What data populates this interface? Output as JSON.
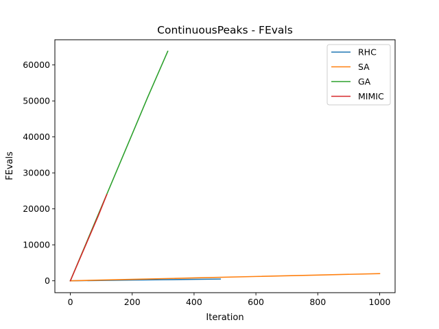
{
  "chart_data": {
    "type": "line",
    "title": "ContinuousPeaks - FEvals",
    "xlabel": "Iteration",
    "ylabel": "FEvals",
    "xlim": [
      -50,
      1050
    ],
    "ylim": [
      -3300,
      67000
    ],
    "xticks": [
      0,
      200,
      400,
      600,
      800,
      1000
    ],
    "yticks": [
      0,
      10000,
      20000,
      30000,
      40000,
      50000,
      60000
    ],
    "grid": false,
    "legend_position": "top-right",
    "series": [
      {
        "name": "RHC",
        "color": "#1f77b4",
        "x": [
          0,
          100,
          200,
          300,
          400,
          485
        ],
        "y": [
          0,
          100,
          200,
          300,
          400,
          485
        ]
      },
      {
        "name": "SA",
        "color": "#ff7f0e",
        "x": [
          0,
          200,
          400,
          600,
          800,
          1000
        ],
        "y": [
          0,
          400,
          800,
          1200,
          1600,
          2000
        ]
      },
      {
        "name": "GA",
        "color": "#2ca02c",
        "x": [
          0,
          50,
          100,
          150,
          200,
          250,
          315
        ],
        "y": [
          0,
          10200,
          20400,
          30600,
          40800,
          51000,
          63800
        ]
      },
      {
        "name": "MIMIC",
        "color": "#d62728",
        "x": [
          0,
          30,
          60,
          90,
          118
        ],
        "y": [
          0,
          6000,
          12000,
          18000,
          24000
        ]
      }
    ]
  }
}
